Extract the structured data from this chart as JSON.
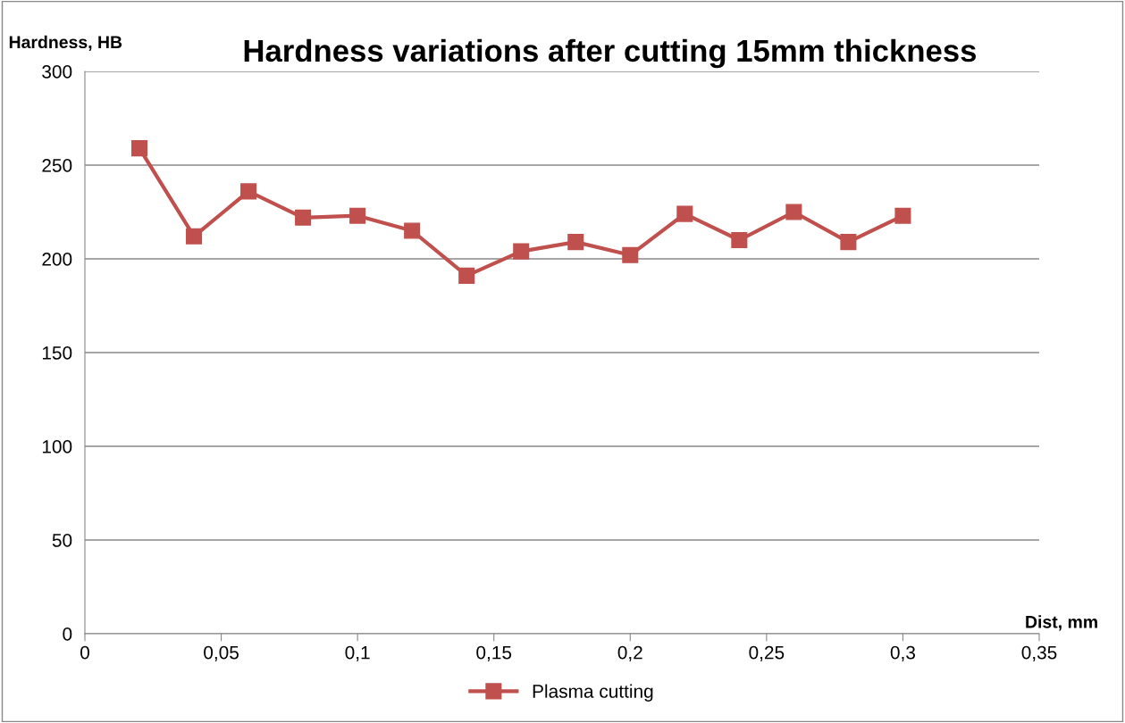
{
  "chart_data": {
    "type": "line",
    "title": "Hardness variations after cutting 15mm thickness",
    "xlabel": "Dist, mm",
    "ylabel": "Hardness, HB",
    "series": [
      {
        "name": "Plasma cutting",
        "color": "#c0504d",
        "x": [
          0.02,
          0.04,
          0.06,
          0.08,
          0.1,
          0.12,
          0.14,
          0.16,
          0.18,
          0.2,
          0.22,
          0.24,
          0.26,
          0.28,
          0.3
        ],
        "values": [
          259,
          212,
          236,
          222,
          223,
          215,
          191,
          204,
          209,
          202,
          224,
          210,
          225,
          209,
          223
        ]
      }
    ],
    "xlim": [
      0,
      0.35
    ],
    "xticks": [
      0,
      {
        "value": 0.05,
        "label": "0,05"
      },
      {
        "value": 0.1,
        "label": "0,1"
      },
      {
        "value": 0.15,
        "label": "0,15"
      },
      {
        "value": 0.2,
        "label": "0,2"
      },
      {
        "value": 0.25,
        "label": "0,25"
      },
      {
        "value": 0.3,
        "label": "0,3"
      },
      {
        "value": 0.35,
        "label": "0,35"
      }
    ],
    "ylim": [
      0,
      300
    ],
    "yticks": [
      0,
      50,
      100,
      150,
      200,
      250,
      300
    ],
    "grid": "y",
    "legend": "bottom",
    "marker": "square",
    "line_style": "solid"
  }
}
